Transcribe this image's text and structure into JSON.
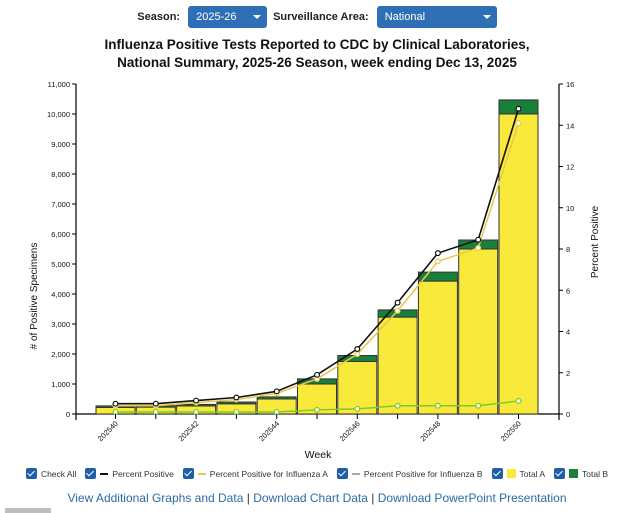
{
  "controls": {
    "season_label": "Season:",
    "season_value": "2025-26",
    "area_label": "Surveillance Area:",
    "area_value": "National"
  },
  "chart_data": {
    "type": "bar",
    "title_line1": "Influenza Positive Tests Reported to CDC by Clinical Laboratories,",
    "title_line2": "National Summary, 2025-26 Season, week ending Dec 13, 2025",
    "xlabel": "Week",
    "ylabel": "# of Positive Specimens",
    "ylabel_right": "Percent Positive",
    "ylim": [
      0,
      11000
    ],
    "ylim_right": [
      0,
      16
    ],
    "yticks": [
      0,
      1000,
      2000,
      3000,
      4000,
      5000,
      6000,
      7000,
      8000,
      9000,
      10000,
      11000
    ],
    "ytick_labels": [
      "0",
      "1,000",
      "2,000",
      "3,000",
      "4,000",
      "5,000",
      "6,000",
      "7,000",
      "8,000",
      "9,000",
      "10,000",
      "11,000"
    ],
    "yticks_right": [
      0,
      2,
      4,
      6,
      8,
      10,
      12,
      14,
      16
    ],
    "ytick_labels_right": [
      "0",
      "2",
      "4",
      "6",
      "8",
      "10",
      "12",
      "14",
      "16"
    ],
    "categories": [
      "202540",
      "202541",
      "202542",
      "202543",
      "202544",
      "202545",
      "202546",
      "202547",
      "202548",
      "202549",
      "202550"
    ],
    "xtick_labels": [
      "202540",
      "",
      "202542",
      "",
      "202544",
      "",
      "202546",
      "",
      "202548",
      "",
      "202550"
    ],
    "series": [
      {
        "name": "Total A",
        "kind": "bar",
        "color": "#f9e93b",
        "values": [
          220,
          230,
          270,
          340,
          500,
          1000,
          1750,
          3230,
          4430,
          5500,
          10000
        ]
      },
      {
        "name": "Total B",
        "kind": "bar",
        "color": "#1a7f3a",
        "values": [
          50,
          50,
          50,
          60,
          70,
          170,
          200,
          240,
          300,
          300,
          470
        ]
      },
      {
        "name": "Percent Positive",
        "kind": "line",
        "axis": "right",
        "color": "#111111",
        "values": [
          0.5,
          0.5,
          0.65,
          0.8,
          1.1,
          1.9,
          3.15,
          5.4,
          7.8,
          8.45,
          14.8
        ]
      },
      {
        "name": "Percent Positive for Influenza A",
        "kind": "line",
        "axis": "right",
        "color": "#e8c84a",
        "values": [
          0.4,
          0.4,
          0.55,
          0.7,
          1.0,
          1.7,
          2.9,
          5.0,
          7.4,
          8.05,
          14.1
        ]
      },
      {
        "name": "Percent Positive for Influenza B",
        "kind": "line",
        "axis": "right",
        "color": "#7ccc2a",
        "values": [
          0.1,
          0.1,
          0.1,
          0.1,
          0.1,
          0.2,
          0.25,
          0.4,
          0.4,
          0.4,
          0.63
        ]
      }
    ],
    "legend": {
      "check_all": "Check All",
      "items": [
        "Percent Positive",
        "Percent Positive for Influenza A",
        "Percent Positive for Influenza B",
        "Total A",
        "Total B"
      ]
    }
  },
  "links": {
    "additional": "View Additional Graphs and Data",
    "separator": "|",
    "download_data": "Download Chart Data",
    "download_ppt": "Download PowerPoint Presentation"
  }
}
